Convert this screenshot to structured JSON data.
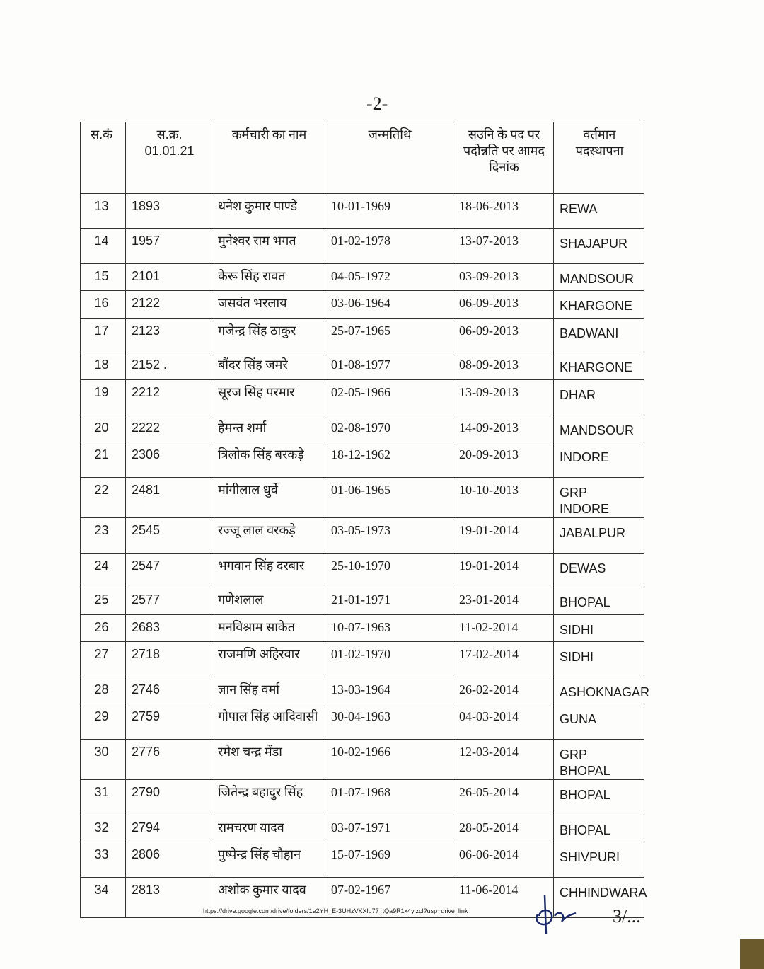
{
  "page_number": "-2-",
  "table": {
    "headers": [
      "स.कं",
      "स.क्र. 01.01.21",
      "कर्मचारी का नाम",
      "जन्मतिथि",
      "सउनि के पद पर पदोन्नति पर आमद दिनांक",
      "वर्तमान पदस्थापना"
    ],
    "rows": [
      [
        "13",
        "1893",
        "धनेश कुमार पाण्डे",
        "10-01-1969",
        "18-06-2013",
        "REWA"
      ],
      [
        "14",
        "1957",
        "मुनेश्वर राम भगत",
        "01-02-1978",
        "13-07-2013",
        "SHAJAPUR"
      ],
      [
        "15",
        "2101",
        "केरू सिंह रावत",
        "04-05-1972",
        "03-09-2013",
        "MANDSOUR"
      ],
      [
        "16",
        "2122",
        "जसवंत भरलाय",
        "03-06-1964",
        "06-09-2013",
        "KHARGONE"
      ],
      [
        "17",
        "2123",
        "गजेन्द्र सिंह ठाकुर",
        "25-07-1965",
        "06-09-2013",
        "BADWANI"
      ],
      [
        "18",
        "2152 .",
        "बौंदर सिंह जमरे",
        "01-08-1977",
        "08-09-2013",
        "KHARGONE"
      ],
      [
        "19",
        "2212",
        "सूरज सिंह परमार",
        "02-05-1966",
        "13-09-2013",
        "DHAR"
      ],
      [
        "20",
        "2222",
        "हेमन्त शर्मा",
        "02-08-1970",
        "14-09-2013",
        "MANDSOUR"
      ],
      [
        "21",
        "2306",
        "त्रिलोक सिंह बरकड़े",
        "18-12-1962",
        "20-09-2013",
        "INDORE"
      ],
      [
        "22",
        "2481",
        "मांगीलाल धुर्वे",
        "01-06-1965",
        "10-10-2013",
        "GRP INDORE"
      ],
      [
        "23",
        "2545",
        "रज्जू लाल वरकड़े",
        "03-05-1973",
        "19-01-2014",
        "JABALPUR"
      ],
      [
        "24",
        "2547",
        "भगवान सिंह दरबार",
        "25-10-1970",
        "19-01-2014",
        "DEWAS"
      ],
      [
        "25",
        "2577",
        "गणेशलाल",
        "21-01-1971",
        "23-01-2014",
        "BHOPAL"
      ],
      [
        "26",
        "2683",
        "मनविश्राम साकेत",
        "10-07-1963",
        "11-02-2014",
        "SIDHI"
      ],
      [
        "27",
        "2718",
        "राजमणि अहिरवार",
        "01-02-1970",
        "17-02-2014",
        "SIDHI"
      ],
      [
        "28",
        "2746",
        "ज्ञान सिंह वर्मा",
        "13-03-1964",
        "26-02-2014",
        "ASHOKNAGAR"
      ],
      [
        "29",
        "2759",
        "गोपाल सिंह आदिवासी",
        "30-04-1963",
        "04-03-2014",
        "GUNA"
      ],
      [
        "30",
        "2776",
        "रमेश चन्द्र मेंडा",
        "10-02-1966",
        "12-03-2014",
        "GRP BHOPAL"
      ],
      [
        "31",
        "2790",
        "जितेन्द्र बहादुर सिंह",
        "01-07-1968",
        "26-05-2014",
        "BHOPAL"
      ],
      [
        "32",
        "2794",
        "रामचरण यादव",
        "03-07-1971",
        "28-05-2014",
        "BHOPAL"
      ],
      [
        "33",
        "2806",
        "पुष्पेन्द्र सिंह चौहान",
        "15-07-1969",
        "06-06-2014",
        "SHIVPURI"
      ],
      [
        "34",
        "2813",
        "अशोक कुमार यादव",
        "07-02-1967",
        "11-06-2014",
        "CHHINDWARA"
      ]
    ]
  },
  "footer": {
    "url": "https://drive.google.com/drive/folders/1e2YH_E-3UHzVKXlu77_tQa9R1x4ylzcl?usp=drive_link",
    "next_page": "3/..."
  }
}
